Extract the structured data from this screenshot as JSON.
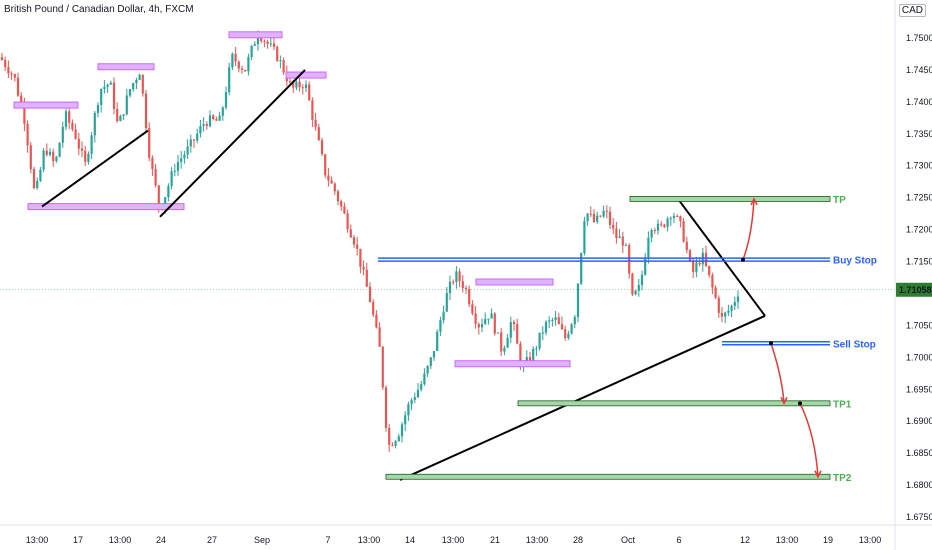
{
  "header": {
    "title": "British Pound / Canadian Dollar, 4h, FXCM",
    "currency": "CAD"
  },
  "chart_data": {
    "type": "candlestick",
    "y_ticks": [
      "1.75000",
      "1.74500",
      "1.74000",
      "1.73500",
      "1.73000",
      "1.72500",
      "1.72000",
      "1.71500",
      "1.71000",
      "1.70500",
      "1.70000",
      "1.69500",
      "1.69000",
      "1.68500",
      "1.68000",
      "1.67500"
    ],
    "y_range": [
      1.6725,
      1.755
    ],
    "x_ticks": [
      "13:00",
      "17",
      "13:00",
      "24",
      "27",
      "Sep",
      "7",
      "13:00",
      "14",
      "13:00",
      "21",
      "13:00",
      "28",
      "Oct",
      "6",
      "12",
      "13:00",
      "19",
      "13:00"
    ],
    "current_price": "1.71058",
    "colors": {
      "up": "#26a69a",
      "down": "#ef5350",
      "buy_stop": "#2962ff",
      "sell_stop": "#2962ff",
      "target": "#4caf50",
      "zone": "#cc66ff",
      "arrow": "#e53935",
      "price_line": "#2e7d32"
    },
    "levels": [
      {
        "label": "TP",
        "price": 1.7248,
        "color": "green"
      },
      {
        "label": "Buy Stop",
        "price": 1.7153,
        "color": "blue"
      },
      {
        "label": "Sell Stop",
        "price": 1.7022,
        "color": "blue"
      },
      {
        "label": "TP1",
        "price": 1.6928,
        "color": "green"
      },
      {
        "label": "TP2",
        "price": 1.6813,
        "color": "green"
      }
    ]
  }
}
